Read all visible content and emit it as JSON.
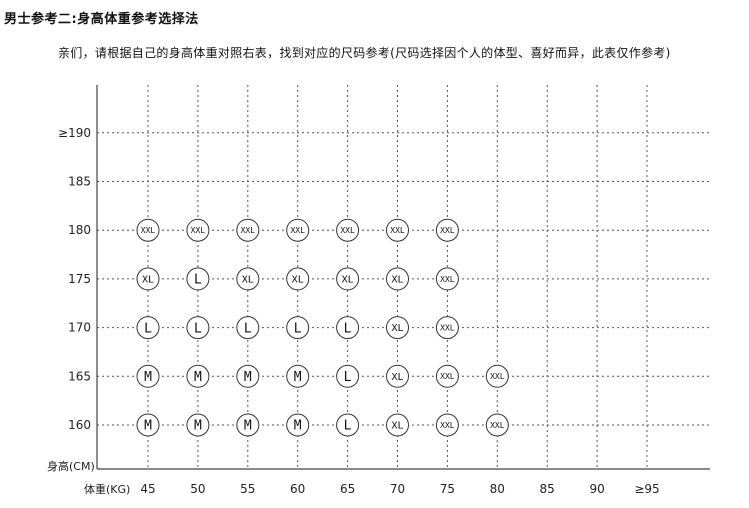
{
  "header": {
    "title": "男士参考二:身高体重参考选择法",
    "subtitle": "亲们，请根据自己的身高体重对照右表，找到对应的尺码参考(尺码选择因个人的体型、喜好而异，此表仅作参考)"
  },
  "chart_data": {
    "type": "scatter",
    "xlabel": "体重(KG)",
    "ylabel": "身高(CM)",
    "x_ticks": [
      "45",
      "50",
      "55",
      "60",
      "65",
      "70",
      "75",
      "80",
      "85",
      "90",
      "≥95"
    ],
    "y_ticks": [
      "160",
      "165",
      "170",
      "175",
      "180",
      "185",
      "≥190"
    ],
    "grid": true,
    "rows": [
      {
        "height": 180,
        "sizes": [
          "XXL",
          "XXL",
          "XXL",
          "XXL",
          "XXL",
          "XXL",
          "XXL"
        ]
      },
      {
        "height": 175,
        "sizes": [
          "XL",
          "L",
          "XL",
          "XL",
          "XL",
          "XL",
          "XXL"
        ]
      },
      {
        "height": 170,
        "sizes": [
          "L",
          "L",
          "L",
          "L",
          "L",
          "XL",
          "XXL"
        ]
      },
      {
        "height": 165,
        "sizes": [
          "M",
          "M",
          "M",
          "M",
          "L",
          "XL",
          "XXL",
          "XXL"
        ]
      },
      {
        "height": 160,
        "sizes": [
          "M",
          "M",
          "M",
          "M",
          "L",
          "XL",
          "XXL",
          "XXL"
        ]
      }
    ],
    "colors": {
      "grid": "#555555",
      "axis": "#444444",
      "marker_stroke": "#333333",
      "marker_fill": "#ffffff"
    }
  }
}
